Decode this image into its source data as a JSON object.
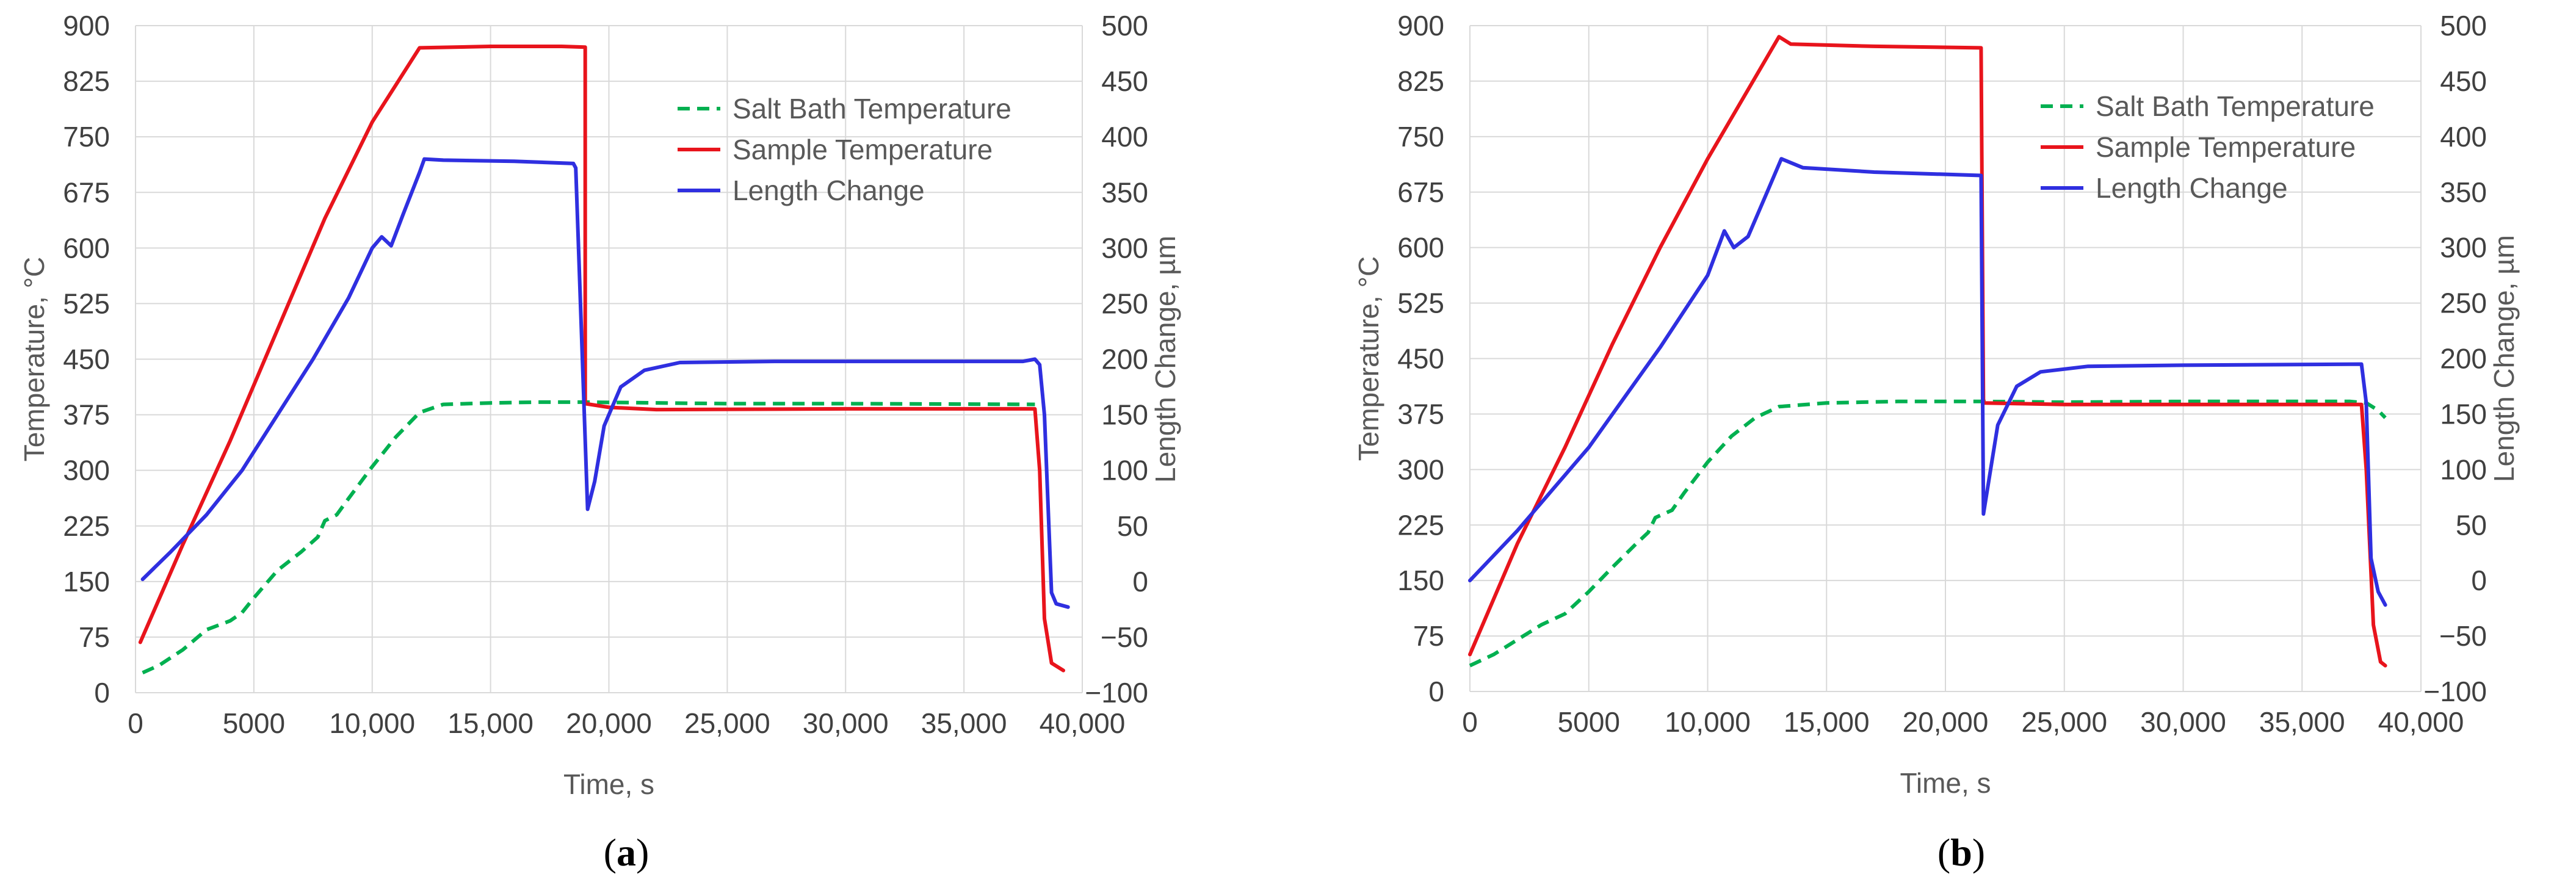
{
  "colors": {
    "salt_bath": "#00b050",
    "sample": "#e8141c",
    "length": "#2f2fe0",
    "grid": "#d9d9d9"
  },
  "chart_data": [
    {
      "id": "a",
      "type": "line",
      "panel_label": "a",
      "xlabel": "Time, s",
      "ylabel": "Temperature, °C",
      "y2label": "Length Change, µm",
      "xlim": [
        0,
        40000
      ],
      "ylim": [
        0,
        900
      ],
      "y2lim": [
        -100,
        500
      ],
      "xticks": [
        "0",
        "5000",
        "10,000",
        "15,000",
        "20,000",
        "25,000",
        "30,000",
        "35,000",
        "40,000"
      ],
      "yticks": [
        "0",
        "75",
        "150",
        "225",
        "300",
        "375",
        "450",
        "525",
        "600",
        "675",
        "750",
        "825",
        "900"
      ],
      "y2ticks": [
        "−100",
        "−50",
        "0",
        "50",
        "100",
        "150",
        "200",
        "250",
        "300",
        "350",
        "400",
        "450",
        "500"
      ],
      "grid": true,
      "legend_position": "top-right",
      "series": [
        {
          "name": "Salt Bath Temperature",
          "axis": "left",
          "style": "dashed",
          "color": "#00b050",
          "points": [
            [
              300,
              27
            ],
            [
              1000,
              37
            ],
            [
              2000,
              58
            ],
            [
              3000,
              85
            ],
            [
              4000,
              97
            ],
            [
              4500,
              108
            ],
            [
              5000,
              128
            ],
            [
              6000,
              165
            ],
            [
              7000,
              190
            ],
            [
              7700,
              210
            ],
            [
              8000,
              232
            ],
            [
              8500,
              240
            ],
            [
              9000,
              262
            ],
            [
              10000,
              305
            ],
            [
              11000,
              345
            ],
            [
              12000,
              378
            ],
            [
              13000,
              389
            ],
            [
              15000,
              391
            ],
            [
              17000,
              392
            ],
            [
              19000,
              392
            ],
            [
              25000,
              390
            ],
            [
              30000,
              390
            ],
            [
              38000,
              389
            ]
          ]
        },
        {
          "name": "Sample Temperature",
          "axis": "left",
          "style": "solid",
          "color": "#e8141c",
          "points": [
            [
              200,
              68
            ],
            [
              2000,
              200
            ],
            [
              4000,
              340
            ],
            [
              6000,
              490
            ],
            [
              8000,
              640
            ],
            [
              10000,
              770
            ],
            [
              11000,
              820
            ],
            [
              12000,
              870
            ],
            [
              15000,
              872
            ],
            [
              18000,
              872
            ],
            [
              19000,
              871
            ],
            [
              19000,
              390
            ],
            [
              20000,
              385
            ],
            [
              22000,
              382
            ],
            [
              30000,
              383
            ],
            [
              38000,
              383
            ],
            [
              38200,
              300
            ],
            [
              38400,
              100
            ],
            [
              38700,
              40
            ],
            [
              39200,
              30
            ]
          ]
        },
        {
          "name": "Length Change",
          "axis": "right",
          "style": "solid",
          "color": "#2f2fe0",
          "points": [
            [
              300,
              2
            ],
            [
              1500,
              27
            ],
            [
              3000,
              60
            ],
            [
              4500,
              100
            ],
            [
              6000,
              150
            ],
            [
              7500,
              200
            ],
            [
              9000,
              255
            ],
            [
              10000,
              300
            ],
            [
              10400,
              310
            ],
            [
              10800,
              302
            ],
            [
              11300,
              330
            ],
            [
              12000,
              368
            ],
            [
              12200,
              380
            ],
            [
              13000,
              379
            ],
            [
              16000,
              378
            ],
            [
              18500,
              376
            ],
            [
              18600,
              372
            ],
            [
              19100,
              65
            ],
            [
              19400,
              90
            ],
            [
              19800,
              140
            ],
            [
              20500,
              175
            ],
            [
              21500,
              190
            ],
            [
              23000,
              197
            ],
            [
              27000,
              198
            ],
            [
              32000,
              198
            ],
            [
              37500,
              198
            ],
            [
              38000,
              200
            ],
            [
              38200,
              195
            ],
            [
              38400,
              150
            ],
            [
              38700,
              -10
            ],
            [
              38900,
              -20
            ],
            [
              39400,
              -23
            ]
          ]
        }
      ]
    },
    {
      "id": "b",
      "type": "line",
      "panel_label": "b",
      "xlabel": "Time, s",
      "ylabel": "Temperature, °C",
      "y2label": "Length Change, µm",
      "xlim": [
        0,
        40000
      ],
      "ylim": [
        0,
        900
      ],
      "y2lim": [
        -100,
        500
      ],
      "xticks": [
        "0",
        "5000",
        "10,000",
        "15,000",
        "20,000",
        "25,000",
        "30,000",
        "35,000",
        "40,000"
      ],
      "yticks": [
        "0",
        "75",
        "150",
        "225",
        "300",
        "375",
        "450",
        "525",
        "600",
        "675",
        "750",
        "825",
        "900"
      ],
      "y2ticks": [
        "−100",
        "−50",
        "0",
        "50",
        "100",
        "150",
        "200",
        "250",
        "300",
        "350",
        "400",
        "450",
        "500"
      ],
      "grid": true,
      "legend_position": "top-right",
      "series": [
        {
          "name": "Salt Bath Temperature",
          "axis": "left",
          "style": "dashed",
          "color": "#00b050",
          "points": [
            [
              0,
              35
            ],
            [
              1000,
              50
            ],
            [
              2000,
              70
            ],
            [
              3000,
              90
            ],
            [
              4000,
              105
            ],
            [
              5000,
              135
            ],
            [
              6000,
              168
            ],
            [
              7000,
              200
            ],
            [
              7500,
              215
            ],
            [
              7800,
              235
            ],
            [
              8500,
              245
            ],
            [
              9000,
              268
            ],
            [
              10000,
              310
            ],
            [
              11000,
              345
            ],
            [
              12000,
              370
            ],
            [
              13000,
              385
            ],
            [
              15000,
              390
            ],
            [
              18000,
              392
            ],
            [
              21500,
              392
            ],
            [
              25000,
              391
            ],
            [
              30000,
              392
            ],
            [
              37000,
              392
            ],
            [
              37700,
              390
            ],
            [
              38200,
              380
            ],
            [
              38500,
              370
            ]
          ]
        },
        {
          "name": "Sample Temperature",
          "axis": "left",
          "style": "solid",
          "color": "#e8141c",
          "points": [
            [
              0,
              50
            ],
            [
              2000,
              200
            ],
            [
              4000,
              330
            ],
            [
              6000,
              470
            ],
            [
              8000,
              600
            ],
            [
              10000,
              720
            ],
            [
              12000,
              830
            ],
            [
              13000,
              885
            ],
            [
              13500,
              875
            ],
            [
              17000,
              872
            ],
            [
              21500,
              870
            ],
            [
              21600,
              390
            ],
            [
              25000,
              388
            ],
            [
              30000,
              388
            ],
            [
              37500,
              388
            ],
            [
              37700,
              300
            ],
            [
              38000,
              90
            ],
            [
              38300,
              40
            ],
            [
              38500,
              35
            ]
          ]
        },
        {
          "name": "Length Change",
          "axis": "right",
          "style": "solid",
          "color": "#2f2fe0",
          "points": [
            [
              0,
              0
            ],
            [
              2000,
              45
            ],
            [
              4000,
              95
            ],
            [
              5000,
              120
            ],
            [
              6000,
              150
            ],
            [
              8000,
              210
            ],
            [
              10000,
              275
            ],
            [
              10700,
              315
            ],
            [
              11100,
              300
            ],
            [
              11700,
              310
            ],
            [
              12500,
              350
            ],
            [
              13100,
              380
            ],
            [
              14000,
              372
            ],
            [
              17000,
              368
            ],
            [
              21500,
              365
            ],
            [
              21600,
              60
            ],
            [
              22200,
              140
            ],
            [
              23000,
              175
            ],
            [
              24000,
              188
            ],
            [
              26000,
              193
            ],
            [
              30000,
              194
            ],
            [
              37500,
              195
            ],
            [
              37700,
              160
            ],
            [
              37900,
              20
            ],
            [
              38200,
              -10
            ],
            [
              38500,
              -22
            ]
          ]
        }
      ]
    }
  ]
}
